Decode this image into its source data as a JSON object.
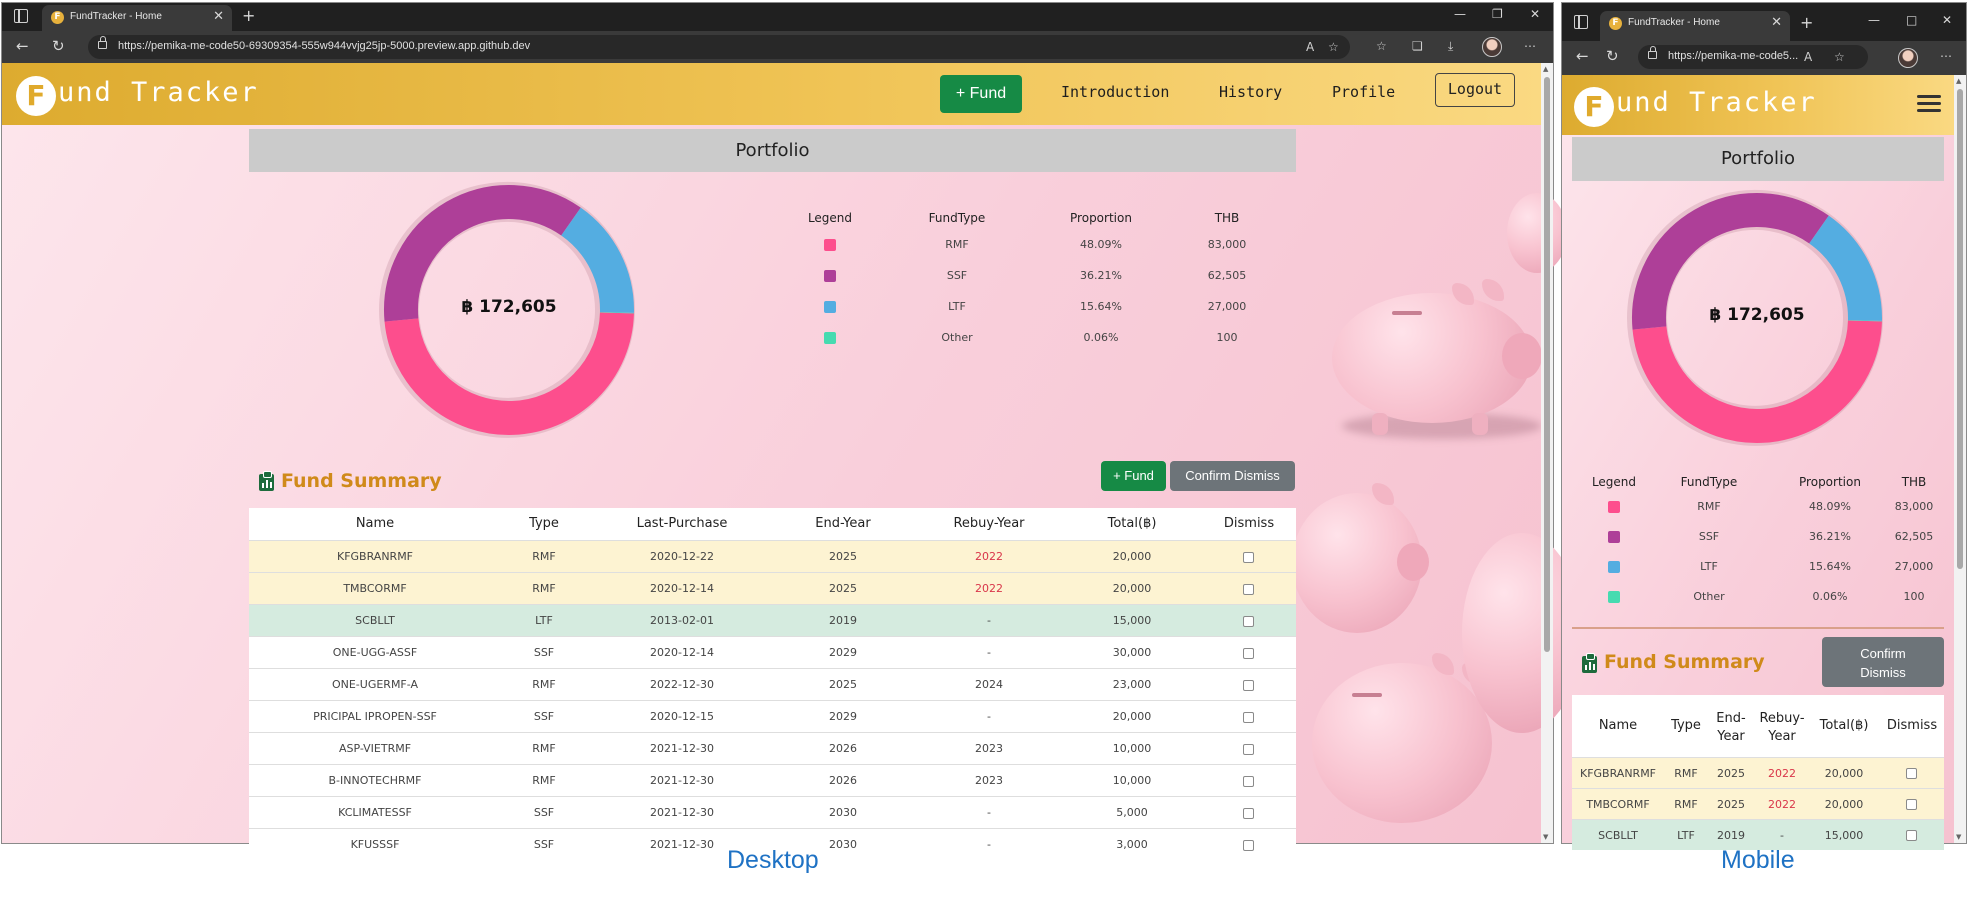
{
  "browser": {
    "tab_title": "FundTracker - Home",
    "desktop_url": "https://pemika-me-code50-69309354-555w944vvjg25jp-5000.preview.app.github.dev",
    "mobile_url": "https://pemika-me-code5..."
  },
  "site": {
    "logo_letter": "F",
    "logo_text": "und Tracker",
    "nav": {
      "fund_button": "+ Fund",
      "introduction": "Introduction",
      "history": "History",
      "profile": "Profile",
      "logout": "Logout"
    }
  },
  "portfolio": {
    "title": "Portfolio",
    "total": "฿ 172,605",
    "legend_headers": {
      "legend": "Legend",
      "fund_type": "FundType",
      "proportion": "Proportion",
      "thb": "THB"
    },
    "legend_rows": [
      {
        "type": "RMF",
        "proportion": "48.09%",
        "thb": "83,000",
        "color": "#fd4e8d"
      },
      {
        "type": "SSF",
        "proportion": "36.21%",
        "thb": "62,505",
        "color": "#ae3f98"
      },
      {
        "type": "LTF",
        "proportion": "15.64%",
        "thb": "27,000",
        "color": "#54ade1"
      },
      {
        "type": "Other",
        "proportion": "0.06%",
        "thb": "100",
        "color": "#46dbb0"
      }
    ]
  },
  "chart_data": {
    "type": "pie",
    "categories": [
      "RMF",
      "SSF",
      "LTF",
      "Other"
    ],
    "values": [
      48.09,
      36.21,
      15.64,
      0.06
    ],
    "title": "",
    "colors": [
      "#fd4e8d",
      "#ae3f98",
      "#54ade1",
      "#46dbb0"
    ]
  },
  "summary": {
    "title": "Fund Summary",
    "add_button": "+ Fund",
    "confirm_button": "Confirm Dismiss",
    "headers": {
      "name": "Name",
      "type": "Type",
      "last_purchase": "Last-Purchase",
      "end_year": "End-Year",
      "rebuy_year": "Rebuy-Year",
      "total": "Total(฿)",
      "dismiss": "Dismiss"
    },
    "mobile_headers": {
      "name": "Name",
      "type": "Type",
      "end_year": "End-\nYear",
      "rebuy_year": "Rebuy-\nYear",
      "total": "Total(฿)",
      "dismiss": "Dismiss"
    },
    "rows": [
      {
        "name": "KFGBRANRMF",
        "type": "RMF",
        "last_purchase": "2020-12-22",
        "end_year": "2025",
        "rebuy_year": "2022",
        "total": "20,000",
        "highlight": "yellow",
        "rebuy_red": true
      },
      {
        "name": "TMBCORMF",
        "type": "RMF",
        "last_purchase": "2020-12-14",
        "end_year": "2025",
        "rebuy_year": "2022",
        "total": "20,000",
        "highlight": "yellow",
        "rebuy_red": true
      },
      {
        "name": "SCBLLT",
        "type": "LTF",
        "last_purchase": "2013-02-01",
        "end_year": "2019",
        "rebuy_year": "-",
        "total": "15,000",
        "highlight": "green",
        "rebuy_red": false
      },
      {
        "name": "ONE-UGG-ASSF",
        "type": "SSF",
        "last_purchase": "2020-12-14",
        "end_year": "2029",
        "rebuy_year": "-",
        "total": "30,000",
        "highlight": "none",
        "rebuy_red": false
      },
      {
        "name": "ONE-UGERMF-A",
        "type": "RMF",
        "last_purchase": "2022-12-30",
        "end_year": "2025",
        "rebuy_year": "2024",
        "total": "23,000",
        "highlight": "none",
        "rebuy_red": false
      },
      {
        "name": "PRICIPAL IPROPEN-SSF",
        "type": "SSF",
        "last_purchase": "2020-12-15",
        "end_year": "2029",
        "rebuy_year": "-",
        "total": "20,000",
        "highlight": "none",
        "rebuy_red": false
      },
      {
        "name": "ASP-VIETRMF",
        "type": "RMF",
        "last_purchase": "2021-12-30",
        "end_year": "2026",
        "rebuy_year": "2023",
        "total": "10,000",
        "highlight": "none",
        "rebuy_red": false
      },
      {
        "name": "B-INNOTECHRMF",
        "type": "RMF",
        "last_purchase": "2021-12-30",
        "end_year": "2026",
        "rebuy_year": "2023",
        "total": "10,000",
        "highlight": "none",
        "rebuy_red": false
      },
      {
        "name": "KCLIMATESSF",
        "type": "SSF",
        "last_purchase": "2021-12-30",
        "end_year": "2030",
        "rebuy_year": "-",
        "total": "5,000",
        "highlight": "none",
        "rebuy_red": false
      },
      {
        "name": "KFUSSSF",
        "type": "SSF",
        "last_purchase": "2021-12-30",
        "end_year": "2030",
        "rebuy_year": "-",
        "total": "3,000",
        "highlight": "none",
        "rebuy_red": false
      }
    ]
  },
  "captions": {
    "desktop": "Desktop",
    "mobile": "Mobile"
  }
}
